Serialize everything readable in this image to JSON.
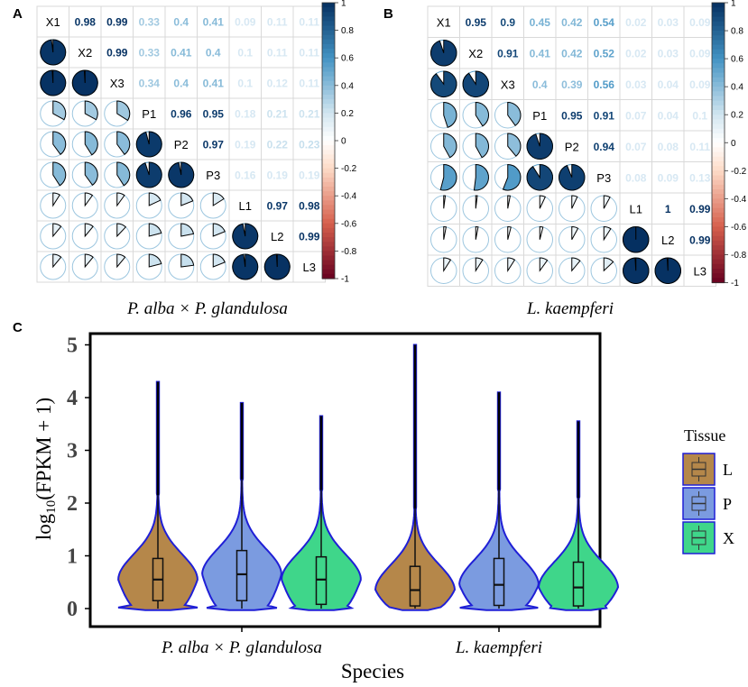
{
  "colors": {
    "neg": "#67001F",
    "pos": "#053061",
    "grid": "#d9d9d9",
    "frame": "#000000",
    "violin_outline": "#1f1fd6",
    "tissue_L": "#b5874a",
    "tissue_P": "#7b9be0",
    "tissue_X": "#3fd68a"
  },
  "panels": {
    "A": {
      "letter": "A",
      "caption": "P. alba × P. glandulosa",
      "variables": [
        "X1",
        "X2",
        "X3",
        "P1",
        "P2",
        "P3",
        "L1",
        "L2",
        "L3"
      ],
      "matrix": [
        [
          1,
          0.98,
          0.99,
          0.33,
          0.4,
          0.41,
          0.09,
          0.11,
          0.11
        ],
        [
          0.98,
          1,
          0.99,
          0.33,
          0.41,
          0.4,
          0.1,
          0.11,
          0.11
        ],
        [
          0.99,
          0.99,
          1,
          0.34,
          0.4,
          0.41,
          0.1,
          0.12,
          0.11
        ],
        [
          0.33,
          0.33,
          0.34,
          1,
          0.96,
          0.95,
          0.18,
          0.21,
          0.21
        ],
        [
          0.4,
          0.41,
          0.4,
          0.96,
          1,
          0.97,
          0.19,
          0.22,
          0.23
        ],
        [
          0.41,
          0.4,
          0.41,
          0.95,
          0.97,
          1,
          0.16,
          0.19,
          0.19
        ],
        [
          0.09,
          0.1,
          0.1,
          0.18,
          0.19,
          0.16,
          1,
          0.97,
          0.98
        ],
        [
          0.11,
          0.11,
          0.12,
          0.21,
          0.22,
          0.19,
          0.97,
          1,
          0.99
        ],
        [
          0.11,
          0.11,
          0.11,
          0.21,
          0.23,
          0.19,
          0.98,
          0.99,
          1
        ]
      ]
    },
    "B": {
      "letter": "B",
      "caption": "L. kaempferi",
      "variables": [
        "X1",
        "X2",
        "X3",
        "P1",
        "P2",
        "P3",
        "L1",
        "L2",
        "L3"
      ],
      "matrix": [
        [
          1,
          0.95,
          0.9,
          0.45,
          0.42,
          0.54,
          0.02,
          0.03,
          0.09
        ],
        [
          0.95,
          1,
          0.91,
          0.41,
          0.42,
          0.52,
          0.02,
          0.03,
          0.09
        ],
        [
          0.9,
          0.91,
          1,
          0.4,
          0.39,
          0.56,
          0.03,
          0.04,
          0.09
        ],
        [
          0.45,
          0.41,
          0.4,
          1,
          0.95,
          0.91,
          0.07,
          0.04,
          0.1
        ],
        [
          0.42,
          0.42,
          0.39,
          0.95,
          1,
          0.94,
          0.07,
          0.08,
          0.11
        ],
        [
          0.54,
          0.52,
          0.56,
          0.91,
          0.94,
          1,
          0.08,
          0.09,
          0.13
        ],
        [
          0.02,
          0.02,
          0.03,
          0.07,
          0.07,
          0.08,
          1,
          1,
          0.99
        ],
        [
          0.03,
          0.03,
          0.04,
          0.04,
          0.08,
          0.09,
          1,
          1,
          0.99
        ],
        [
          0.09,
          0.09,
          0.09,
          0.1,
          0.11,
          0.13,
          0.99,
          0.99,
          1
        ]
      ]
    },
    "C": {
      "letter": "C"
    }
  },
  "colorbar": {
    "ticks": [
      1,
      0.8,
      0.6,
      0.4,
      0.2,
      0,
      -0.2,
      -0.4,
      -0.6,
      -0.8,
      -1
    ],
    "tick_labels": [
      "1",
      "0.8",
      "0.6",
      "0.4",
      "0.2",
      "0",
      "-0.2",
      "-0.4",
      "-0.6",
      "-0.8",
      "-1"
    ]
  },
  "chart_data": [
    {
      "type": "heatmap",
      "subtype": "correlation matrix (upper: coefficients, lower: pie glyphs)",
      "title": "P. alba × P. glandulosa",
      "variables": [
        "X1",
        "X2",
        "X3",
        "P1",
        "P2",
        "P3",
        "L1",
        "L2",
        "L3"
      ],
      "color_range": [
        -1,
        1
      ],
      "legend_position": "right"
    },
    {
      "type": "heatmap",
      "subtype": "correlation matrix (upper: coefficients, lower: pie glyphs)",
      "title": "L. kaempferi",
      "variables": [
        "X1",
        "X2",
        "X3",
        "P1",
        "P2",
        "P3",
        "L1",
        "L2",
        "L3"
      ],
      "color_range": [
        -1,
        1
      ],
      "legend_position": "right"
    },
    {
      "type": "violin",
      "xlabel": "Species",
      "ylabel_base": "log",
      "ylabel_sub": "10",
      "ylabel_rest": "(FPKM + 1)",
      "ylim": [
        -0.25,
        5.1
      ],
      "yticks": [
        0,
        1,
        2,
        3,
        4,
        5
      ],
      "ytick_labels": [
        "0",
        "1",
        "2",
        "3",
        "4",
        "5"
      ],
      "categories": [
        "P. alba × P. glandulosa",
        "L. kaempferi"
      ],
      "legend_title": "Tissue",
      "legend_entries": [
        "L",
        "P",
        "X"
      ],
      "legend_position": "right",
      "series": [
        {
          "species": "P. alba × P. glandulosa",
          "tissue": "L",
          "max": 4.3,
          "q1": 0.15,
          "median": 0.55,
          "q3": 0.95,
          "whisker_max": 2.15
        },
        {
          "species": "P. alba × P. glandulosa",
          "tissue": "P",
          "max": 3.9,
          "q1": 0.15,
          "median": 0.65,
          "q3": 1.1,
          "whisker_max": 2.45
        },
        {
          "species": "P. alba × P. glandulosa",
          "tissue": "X",
          "max": 3.65,
          "q1": 0.08,
          "median": 0.55,
          "q3": 0.98,
          "whisker_max": 2.25
        },
        {
          "species": "L. kaempferi",
          "tissue": "L",
          "max": 5.0,
          "q1": 0.05,
          "median": 0.35,
          "q3": 0.8,
          "whisker_max": 1.9
        },
        {
          "species": "L. kaempferi",
          "tissue": "P",
          "max": 4.1,
          "q1": 0.06,
          "median": 0.45,
          "q3": 0.95,
          "whisker_max": 2.25
        },
        {
          "species": "L. kaempferi",
          "tissue": "X",
          "max": 3.55,
          "q1": 0.05,
          "median": 0.4,
          "q3": 0.88,
          "whisker_max": 2.1
        }
      ]
    }
  ]
}
